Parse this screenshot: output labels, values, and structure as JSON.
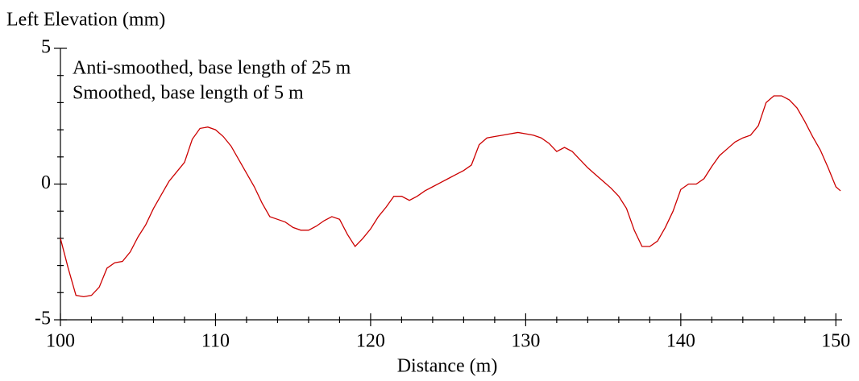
{
  "chart_data": {
    "type": "line",
    "title": "Left Elevation (mm)",
    "xlabel": "Distance (m)",
    "annotations": [
      "Anti-smoothed, base length of 25 m",
      "Smoothed, base length of 5 m"
    ],
    "xlim": [
      100,
      150.4
    ],
    "ylim": [
      -5,
      5
    ],
    "xticks": [
      100,
      110,
      120,
      130,
      140,
      150
    ],
    "yticks": [
      -5,
      0,
      5
    ],
    "xminorticks": [
      102,
      104,
      106,
      108,
      112,
      114,
      116,
      118,
      122,
      124,
      126,
      128,
      132,
      134,
      136,
      138,
      142,
      144,
      146,
      148
    ],
    "yminorticks": [
      -4,
      -3,
      -2,
      -1,
      1,
      2,
      3,
      4
    ],
    "x": [
      100,
      100.5,
      101,
      101.5,
      102,
      102.5,
      103,
      103.5,
      104,
      104.5,
      105,
      105.5,
      106,
      106.5,
      107,
      107.5,
      108,
      108.5,
      109,
      109.5,
      110,
      110.5,
      111,
      111.5,
      112,
      112.5,
      113,
      113.5,
      114,
      114.5,
      115,
      115.5,
      116,
      116.5,
      117,
      117.5,
      118,
      118.5,
      119,
      119.5,
      120,
      120.5,
      121,
      121.5,
      122,
      122.5,
      123,
      123.5,
      124,
      124.5,
      125,
      125.5,
      126,
      126.5,
      127,
      127.5,
      128,
      128.5,
      129,
      129.5,
      130,
      130.5,
      131,
      131.5,
      132,
      132.5,
      133,
      133.5,
      134,
      134.5,
      135,
      135.5,
      136,
      136.5,
      137,
      137.5,
      138,
      138.5,
      139,
      139.5,
      140,
      140.5,
      141,
      141.5,
      142,
      142.5,
      143,
      143.5,
      144,
      144.5,
      145,
      145.5,
      146,
      146.5,
      147,
      147.5,
      148,
      148.5,
      149,
      149.5,
      150,
      150.3
    ],
    "series": [
      {
        "color": "#cc0000",
        "values": [
          -2.0,
          -3.1,
          -4.1,
          -4.15,
          -4.1,
          -3.8,
          -3.1,
          -2.9,
          -2.85,
          -2.5,
          -1.95,
          -1.5,
          -0.9,
          -0.4,
          0.1,
          0.45,
          0.8,
          1.65,
          2.05,
          2.1,
          2.0,
          1.75,
          1.4,
          0.9,
          0.4,
          -0.1,
          -0.7,
          -1.2,
          -1.3,
          -1.4,
          -1.6,
          -1.7,
          -1.7,
          -1.55,
          -1.35,
          -1.2,
          -1.3,
          -1.85,
          -2.3,
          -2.0,
          -1.65,
          -1.2,
          -0.85,
          -0.45,
          -0.45,
          -0.6,
          -0.45,
          -0.25,
          -0.1,
          0.05,
          0.2,
          0.35,
          0.5,
          0.7,
          1.45,
          1.7,
          1.75,
          1.8,
          1.85,
          1.9,
          1.85,
          1.8,
          1.7,
          1.5,
          1.2,
          1.35,
          1.2,
          0.9,
          0.6,
          0.35,
          0.1,
          -0.15,
          -0.45,
          -0.9,
          -1.7,
          -2.3,
          -2.3,
          -2.1,
          -1.6,
          -1.0,
          -0.2,
          0.0,
          0.0,
          0.2,
          0.65,
          1.05,
          1.3,
          1.55,
          1.7,
          1.8,
          2.15,
          3.0,
          3.25,
          3.25,
          3.1,
          2.8,
          2.3,
          1.75,
          1.25,
          0.6,
          -0.1,
          -0.25
        ]
      }
    ]
  }
}
